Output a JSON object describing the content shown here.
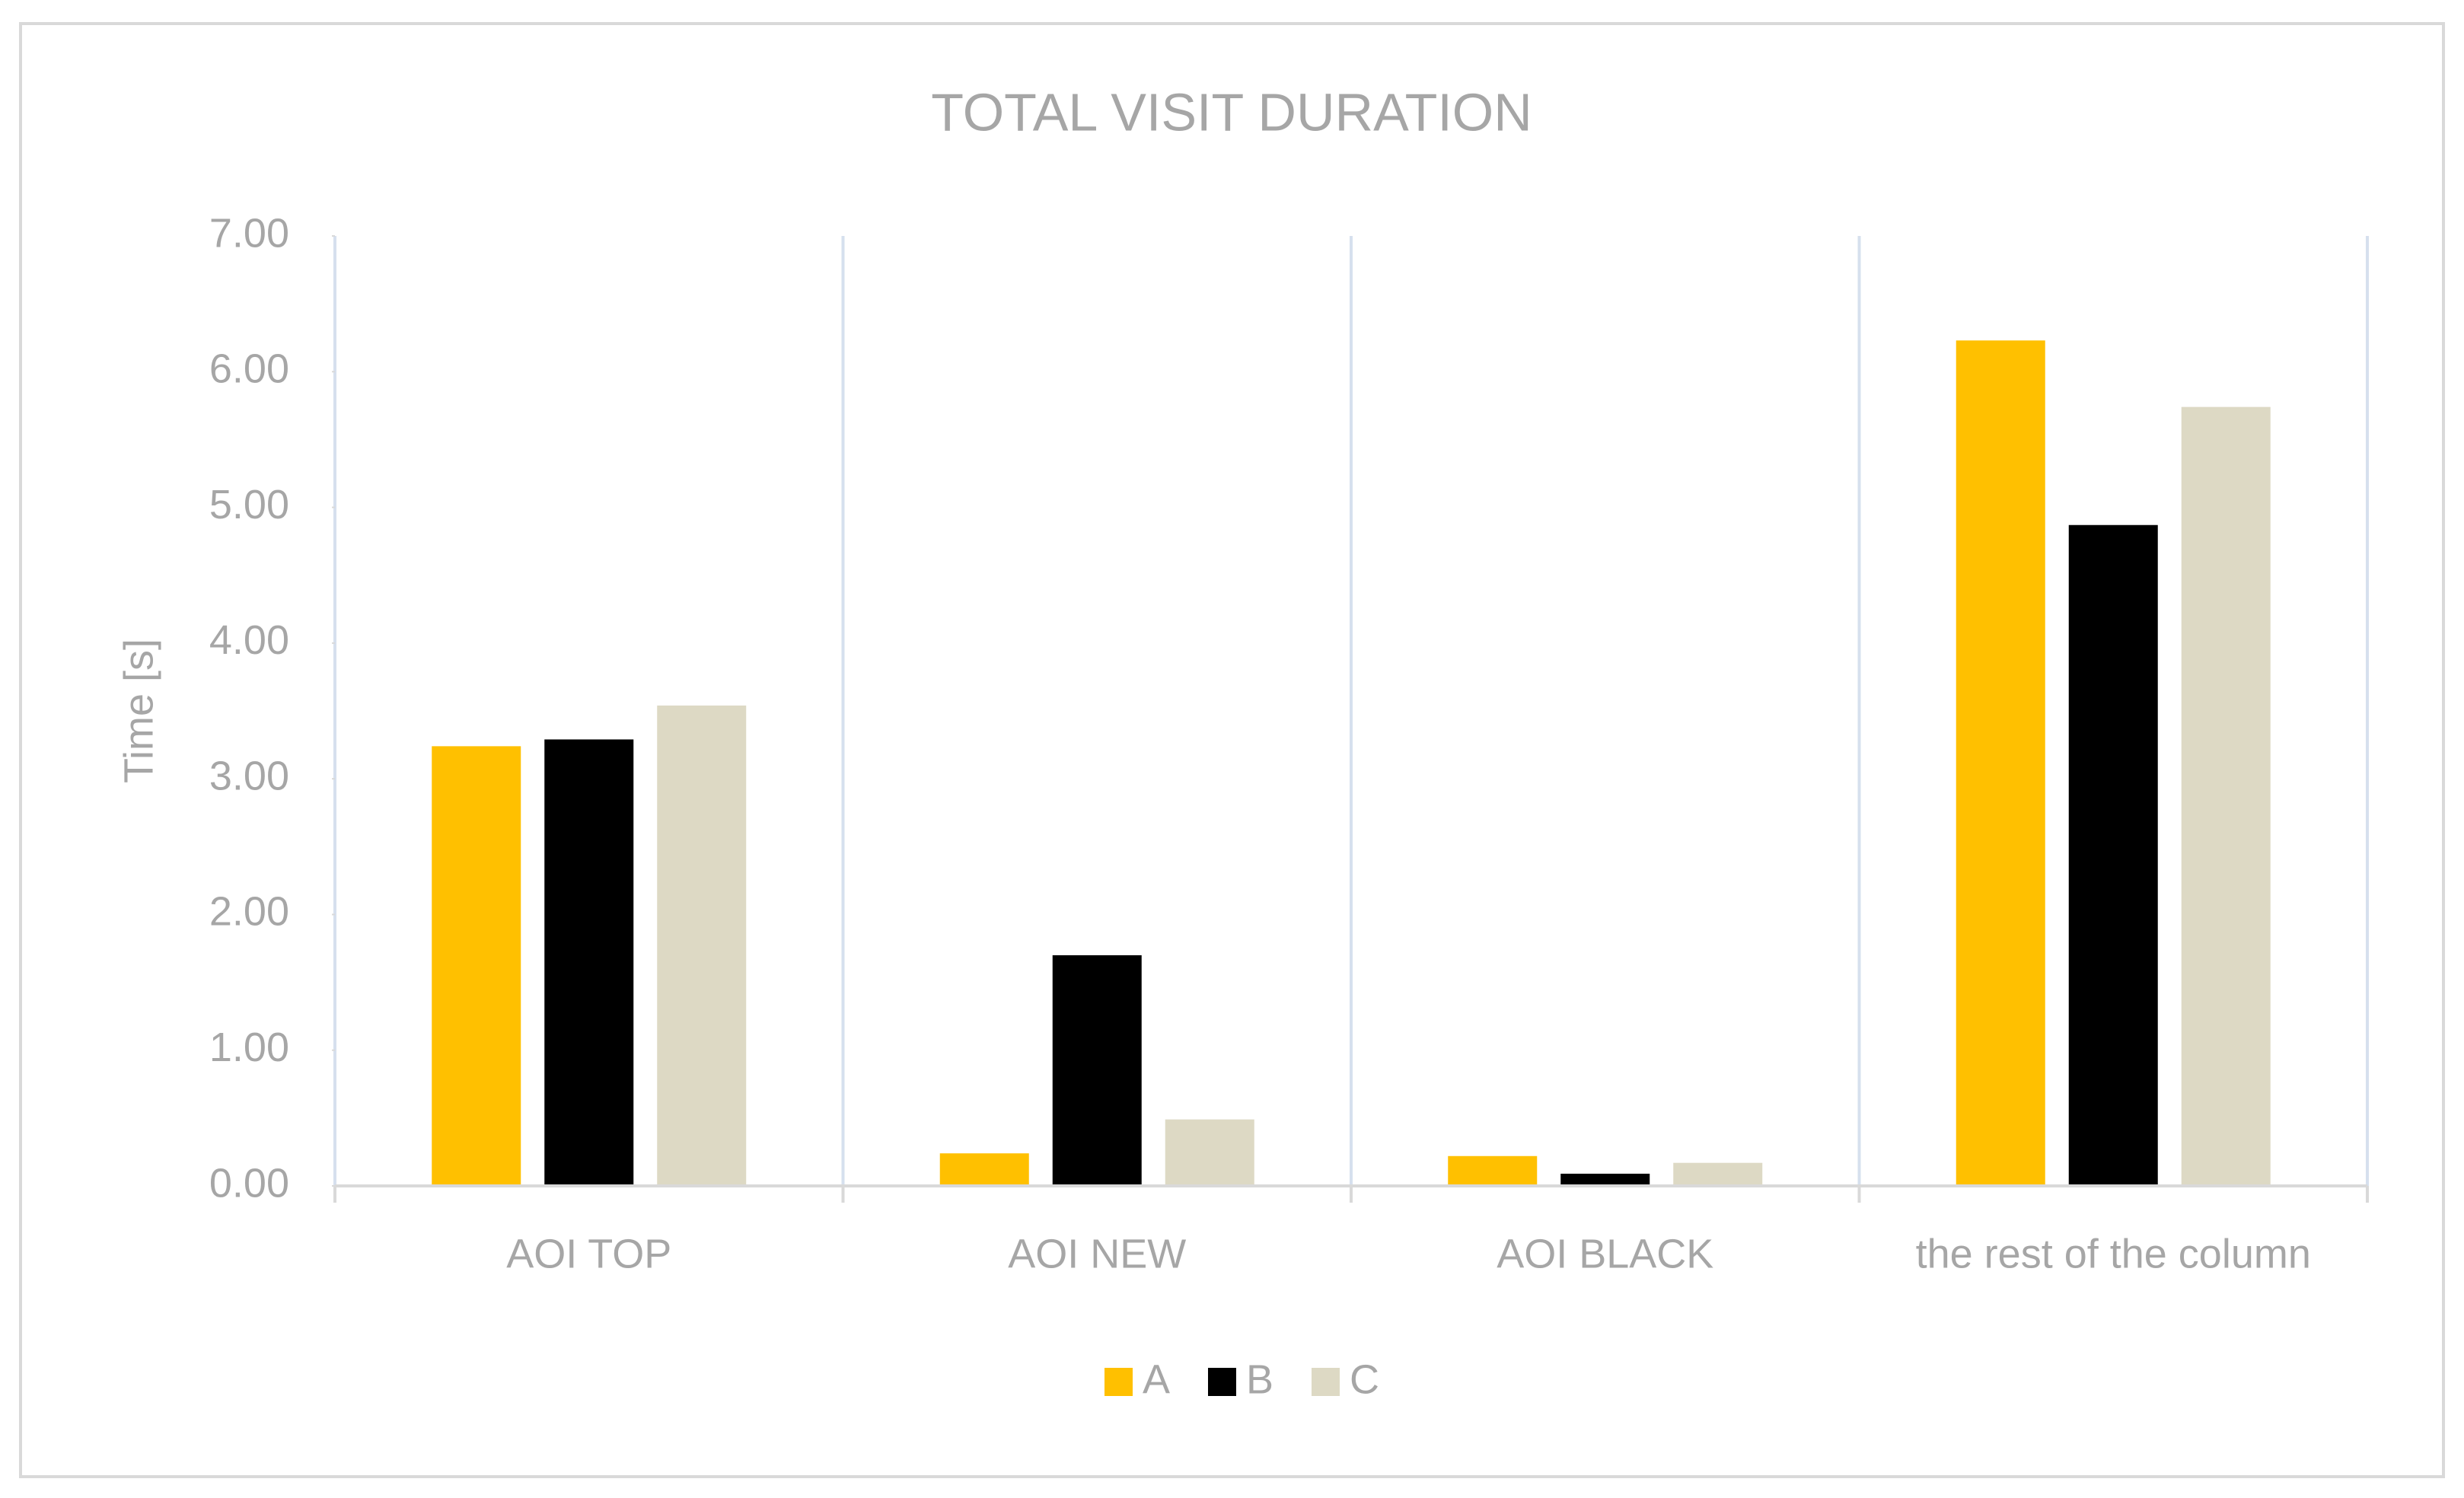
{
  "chart_data": {
    "type": "bar",
    "title": "TOTAL VISIT DURATION",
    "y_label": "Time [s]",
    "categories": [
      "AOI TOP",
      "AOI NEW",
      "AOI BLACK",
      "the rest of the column"
    ],
    "series": [
      {
        "name": "A",
        "color": "#FFC000",
        "values": [
          3.24,
          0.24,
          0.22,
          6.23
        ]
      },
      {
        "name": "B",
        "color": "#000000",
        "values": [
          3.29,
          1.7,
          0.09,
          4.87
        ]
      },
      {
        "name": "C",
        "color": "#DDD9C4",
        "values": [
          3.54,
          0.49,
          0.17,
          5.74
        ]
      }
    ],
    "ylim": [
      0,
      7
    ],
    "yticks": [
      {
        "value": 0,
        "label": "0.00"
      },
      {
        "value": 1,
        "label": "1.00"
      },
      {
        "value": 2,
        "label": "2.00"
      },
      {
        "value": 3,
        "label": "3.00"
      },
      {
        "value": 4,
        "label": "4.00"
      },
      {
        "value": 5,
        "label": "5.00"
      },
      {
        "value": 6,
        "label": "6.00"
      },
      {
        "value": 7,
        "label": "7.00"
      }
    ],
    "legend": "bottom"
  }
}
